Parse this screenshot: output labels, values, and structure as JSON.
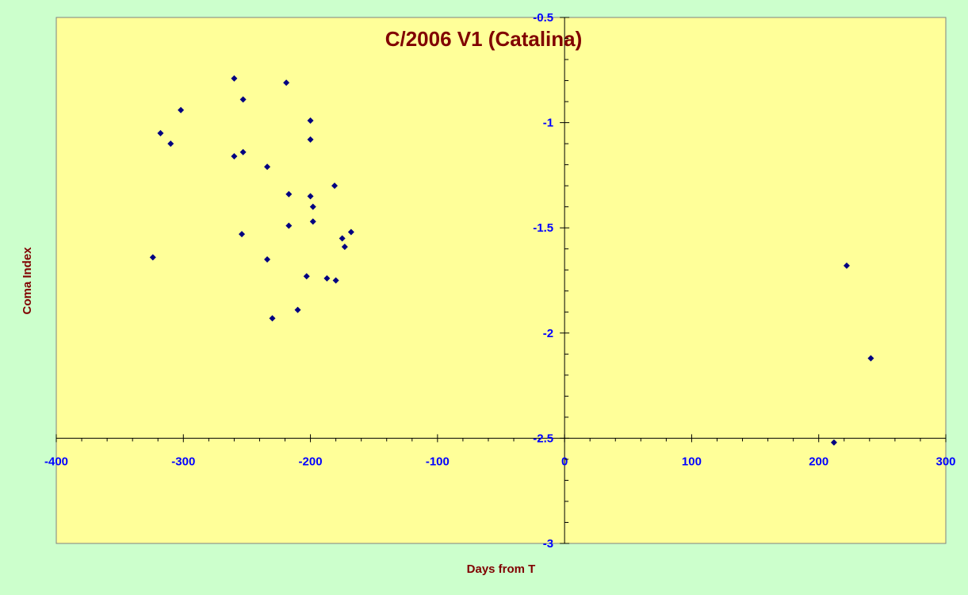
{
  "colors": {
    "page_background": "#ccffcc",
    "plot_background": "#ffff99",
    "title_color": "#800000",
    "tick_label_color": "#0000ff",
    "marker_color": "#000080",
    "axis_color": "#000000"
  },
  "chart_data": {
    "type": "scatter",
    "title": "C/2006 V1 (Catalina)",
    "xlabel": "Days from T",
    "ylabel": "Coma Index",
    "xlim": [
      -400,
      300
    ],
    "ylim": [
      -3,
      -0.5
    ],
    "x_ticks": [
      -400,
      -300,
      -200,
      -100,
      0,
      100,
      200,
      300
    ],
    "x_tick_labels": [
      "-400",
      "-300",
      "-200",
      "-100",
      "0",
      "100",
      "200",
      "300"
    ],
    "y_ticks": [
      -3,
      -2.5,
      -2,
      -1.5,
      -1,
      -0.5
    ],
    "y_tick_labels": [
      "-3",
      "-2.5",
      "-2",
      "-1.5",
      "-1",
      "-0.5"
    ],
    "x_axis_crosses_y": -2.5,
    "y_axis_crosses_x": 0,
    "grid": false,
    "legend": "none",
    "marker": "diamond",
    "series": [
      {
        "points": [
          {
            "x": -324,
            "y": -1.64
          },
          {
            "x": -318,
            "y": -1.05
          },
          {
            "x": -310,
            "y": -1.1
          },
          {
            "x": -302,
            "y": -0.94
          },
          {
            "x": -260,
            "y": -0.79
          },
          {
            "x": -260,
            "y": -1.16
          },
          {
            "x": -253,
            "y": -0.89
          },
          {
            "x": -253,
            "y": -1.14
          },
          {
            "x": -254,
            "y": -1.53
          },
          {
            "x": -234,
            "y": -1.21
          },
          {
            "x": -234,
            "y": -1.65
          },
          {
            "x": -230,
            "y": -1.93
          },
          {
            "x": -219,
            "y": -0.81
          },
          {
            "x": -217,
            "y": -1.34
          },
          {
            "x": -217,
            "y": -1.49
          },
          {
            "x": -210,
            "y": -1.89
          },
          {
            "x": -203,
            "y": -1.73
          },
          {
            "x": -200,
            "y": -0.99
          },
          {
            "x": -200,
            "y": -1.08
          },
          {
            "x": -200,
            "y": -1.35
          },
          {
            "x": -198,
            "y": -1.4
          },
          {
            "x": -198,
            "y": -1.47
          },
          {
            "x": -187,
            "y": -1.74
          },
          {
            "x": -181,
            "y": -1.3
          },
          {
            "x": -180,
            "y": -1.75
          },
          {
            "x": -175,
            "y": -1.55
          },
          {
            "x": -173,
            "y": -1.59
          },
          {
            "x": -168,
            "y": -1.52
          },
          {
            "x": 212,
            "y": -2.52
          },
          {
            "x": 222,
            "y": -1.68
          },
          {
            "x": 241,
            "y": -2.12
          }
        ]
      }
    ]
  }
}
